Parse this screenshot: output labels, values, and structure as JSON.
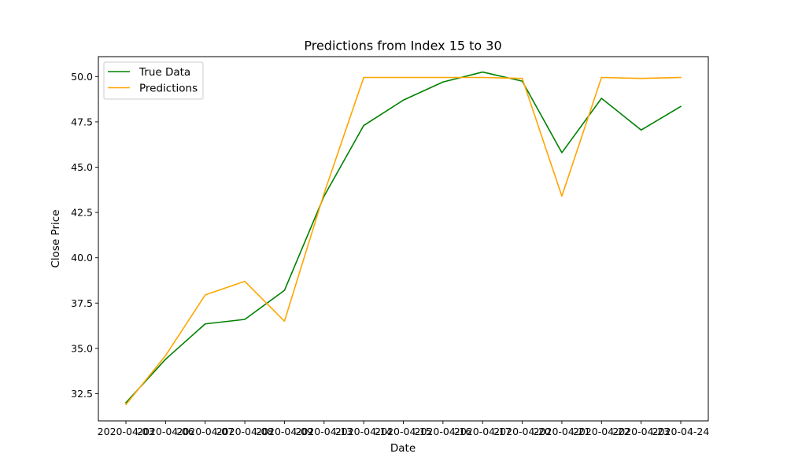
{
  "chart_data": {
    "type": "line",
    "title": "Predictions from Index 15 to 30",
    "xlabel": "Date",
    "ylabel": "Close Price",
    "x": [
      "2020-04-03",
      "2020-04-06",
      "2020-04-07",
      "2020-04-08",
      "2020-04-09",
      "2020-04-13",
      "2020-04-14",
      "2020-04-15",
      "2020-04-16",
      "2020-04-17",
      "2020-04-20",
      "2020-04-21",
      "2020-04-22",
      "2020-04-23",
      "2020-04-24"
    ],
    "ylim": [
      31.0,
      51.1
    ],
    "yticks": [
      32.5,
      35.0,
      37.5,
      40.0,
      42.5,
      45.0,
      47.5,
      50.0
    ],
    "ytick_labels": [
      "32.5",
      "35.0",
      "37.5",
      "40.0",
      "42.5",
      "45.0",
      "47.5",
      "50.0"
    ],
    "grid": false,
    "legend_position": "top-left",
    "series": [
      {
        "name": "True Data",
        "color": "#008000",
        "values": [
          32.0,
          34.4,
          36.35,
          36.6,
          38.2,
          43.4,
          47.3,
          48.7,
          49.7,
          50.25,
          49.75,
          45.8,
          48.8,
          47.05,
          48.35
        ]
      },
      {
        "name": "Predictions",
        "color": "#ffa500",
        "values": [
          31.9,
          34.6,
          37.95,
          38.7,
          36.5,
          43.55,
          49.95,
          49.95,
          49.95,
          49.95,
          49.9,
          43.4,
          49.95,
          49.9,
          49.95
        ]
      }
    ]
  }
}
